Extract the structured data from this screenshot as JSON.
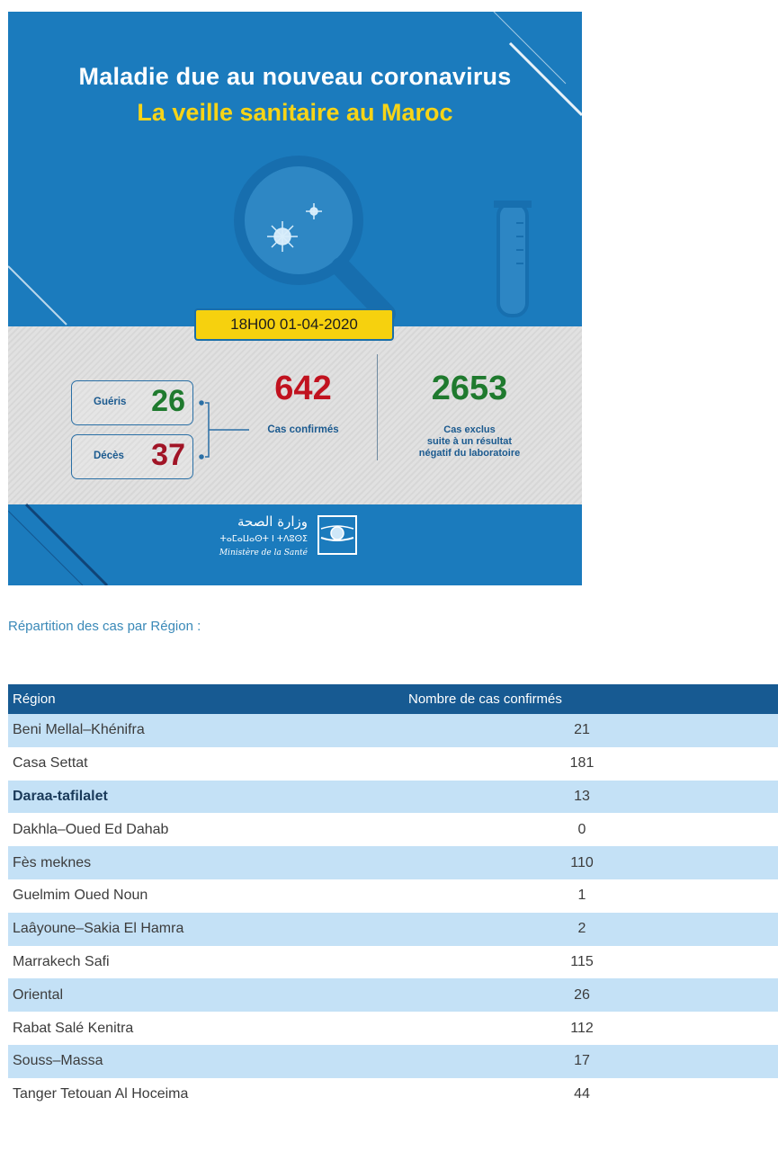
{
  "infographic": {
    "title_line1": "Maladie due au nouveau coronavirus",
    "title_line2": "La veille sanitaire au Maroc",
    "date_time": "18H00  01-04-2020",
    "recovered_label": "Guéris",
    "recovered_value": "26",
    "deaths_label": "Décès",
    "deaths_value": "37",
    "confirmed_value": "642",
    "confirmed_label": "Cas confirmés",
    "excluded_value": "2653",
    "excluded_label_line1": "Cas exclus",
    "excluded_label_line2": "suite à un résultat",
    "excluded_label_line3": "négatif du laboratoire",
    "ministry_arabic": "وزارة الصحة",
    "ministry_tifinagh": "ⵜⴰⵎⴰⵡⴰⵙⵜ ⵏ ⵜⴷⵓⵙⵉ",
    "ministry_french": "Ministère de la Santé",
    "colors": {
      "blue": "#1b7bbd",
      "yellow": "#f6d10e",
      "green": "#1f7a2e",
      "red": "#c1121f"
    }
  },
  "section_title": "Répartition des cas par Région :",
  "table": {
    "headers": [
      "Région",
      "Nombre de cas confirmés"
    ],
    "rows": [
      {
        "region": "Beni Mellal–Khénifra",
        "cases": "21"
      },
      {
        "region": "Casa Settat",
        "cases": "181"
      },
      {
        "region": "Daraa-tafilalet",
        "cases": "13"
      },
      {
        "region": "Dakhla–Oued Ed Dahab",
        "cases": "0"
      },
      {
        "region": "Fès meknes",
        "cases": "110"
      },
      {
        "region": "Guelmim Oued Noun",
        "cases": "1"
      },
      {
        "region": "Laâyoune–Sakia El Hamra",
        "cases": "2"
      },
      {
        "region": "Marrakech Safi",
        "cases": "115"
      },
      {
        "region": "Oriental",
        "cases": "26"
      },
      {
        "region": "Rabat Salé Kenitra",
        "cases": "112"
      },
      {
        "region": "Souss–Massa",
        "cases": "17"
      },
      {
        "region": "Tanger Tetouan Al Hoceima",
        "cases": "44"
      }
    ]
  }
}
